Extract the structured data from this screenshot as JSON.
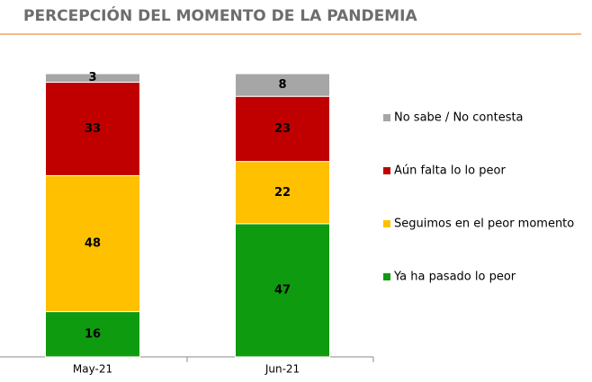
{
  "chart_data": {
    "type": "stacked-bar",
    "title": "PERCEPCIÓN DEL MOMENTO DE LA PANDEMIA",
    "categories": [
      "May-21",
      "Jun-21"
    ],
    "series": [
      {
        "name": "Ya ha pasado lo peor",
        "color": "#0f9b0f",
        "values": [
          16,
          47
        ]
      },
      {
        "name": "Seguimos en el peor momento",
        "color": "#ffc000",
        "values": [
          48,
          22
        ]
      },
      {
        "name": "Aún falta lo lo peor",
        "color": "#c00000",
        "values": [
          33,
          23
        ]
      },
      {
        "name": "No sabe / No contesta",
        "color": "#a6a6a6",
        "values": [
          3,
          8
        ]
      }
    ]
  }
}
